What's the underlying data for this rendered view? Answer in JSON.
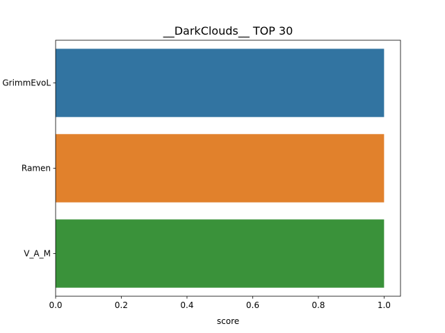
{
  "chart_data": {
    "type": "bar",
    "orientation": "horizontal",
    "title": "__DarkClouds__ TOP 30",
    "xlabel": "score",
    "ylabel": "",
    "categories": [
      "GrimmEvoL",
      "Ramen",
      "V_A_M"
    ],
    "values": [
      1.0,
      1.0,
      1.0
    ],
    "colors": [
      "#3274a1",
      "#e1812c",
      "#3a923a"
    ],
    "xlim": [
      0,
      1.05
    ],
    "xticks": [
      {
        "value": 0.0,
        "label": "0.0"
      },
      {
        "value": 0.2,
        "label": "0.2"
      },
      {
        "value": 0.4,
        "label": "0.4"
      },
      {
        "value": 0.6,
        "label": "0.6"
      },
      {
        "value": 0.8,
        "label": "0.8"
      },
      {
        "value": 1.0,
        "label": "1.0"
      }
    ],
    "grid": false,
    "legend": "none"
  }
}
